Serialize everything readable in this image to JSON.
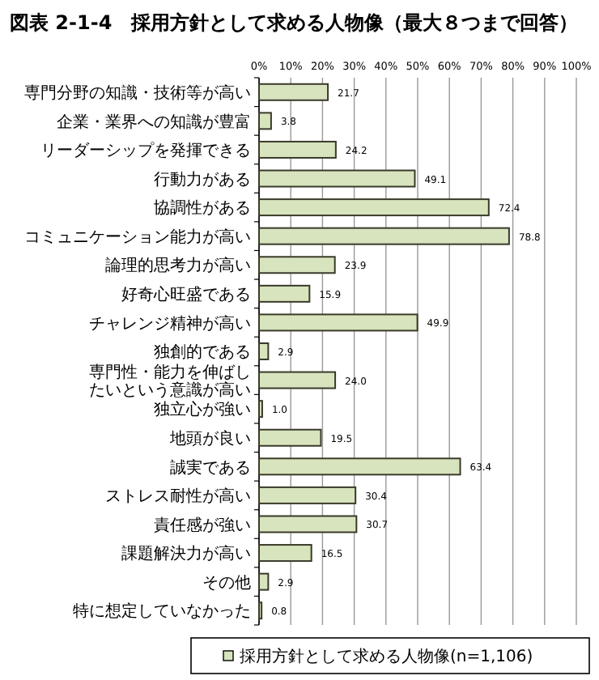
{
  "chart_data": {
    "type": "bar",
    "orientation": "horizontal",
    "title": "図表 2-1-4　採用方針として求める人物像（最大８つまで回答）",
    "categories": [
      "専門分野の知識・技術等が高い",
      "企業・業界への知識が豊富",
      "リーダーシップを発揮できる",
      "行動力がある",
      "協調性がある",
      "コミュニケーション能力が高い",
      "論理的思考力が高い",
      "好奇心旺盛である",
      "チャレンジ精神が高い",
      "独創的である",
      "専門性・能力を伸ばしたいという意識が高い",
      "独立心が強い",
      "地頭が良い",
      "誠実である",
      "ストレス耐性が高い",
      "責任感が強い",
      "課題解決力が高い",
      "その他",
      "特に想定していなかった"
    ],
    "series": [
      {
        "name": "採用方針として求める人物像(n=1,106)",
        "color": "#d7e4bd",
        "values": [
          21.7,
          3.8,
          24.2,
          49.1,
          72.4,
          78.8,
          23.9,
          15.9,
          49.9,
          2.9,
          24.0,
          1.0,
          19.5,
          63.4,
          30.4,
          30.7,
          16.5,
          2.9,
          0.8
        ],
        "value_labels": [
          "21.7",
          "3.8",
          "24.2",
          "49.1",
          "72.4",
          "78.8",
          "23.9",
          "15.9",
          "49.9",
          "2.9",
          "24.0",
          "1.0",
          "19.5",
          "63.4",
          "30.4",
          "30.7",
          "16.5",
          "2.9",
          "0.8"
        ]
      }
    ],
    "xlim": [
      0,
      100
    ],
    "xticks": [
      {
        "value": 0,
        "label": "0%"
      },
      {
        "value": 10,
        "label": "10%"
      },
      {
        "value": 20,
        "label": "20%"
      },
      {
        "value": 30,
        "label": "30%"
      },
      {
        "value": 40,
        "label": "40%"
      },
      {
        "value": 50,
        "label": "50%"
      },
      {
        "value": 60,
        "label": "60%"
      },
      {
        "value": 70,
        "label": "70%"
      },
      {
        "value": 80,
        "label": "80%"
      },
      {
        "value": 90,
        "label": "90%"
      },
      {
        "value": 100,
        "label": "100%"
      }
    ],
    "grid": "x",
    "legend": "bottom"
  }
}
